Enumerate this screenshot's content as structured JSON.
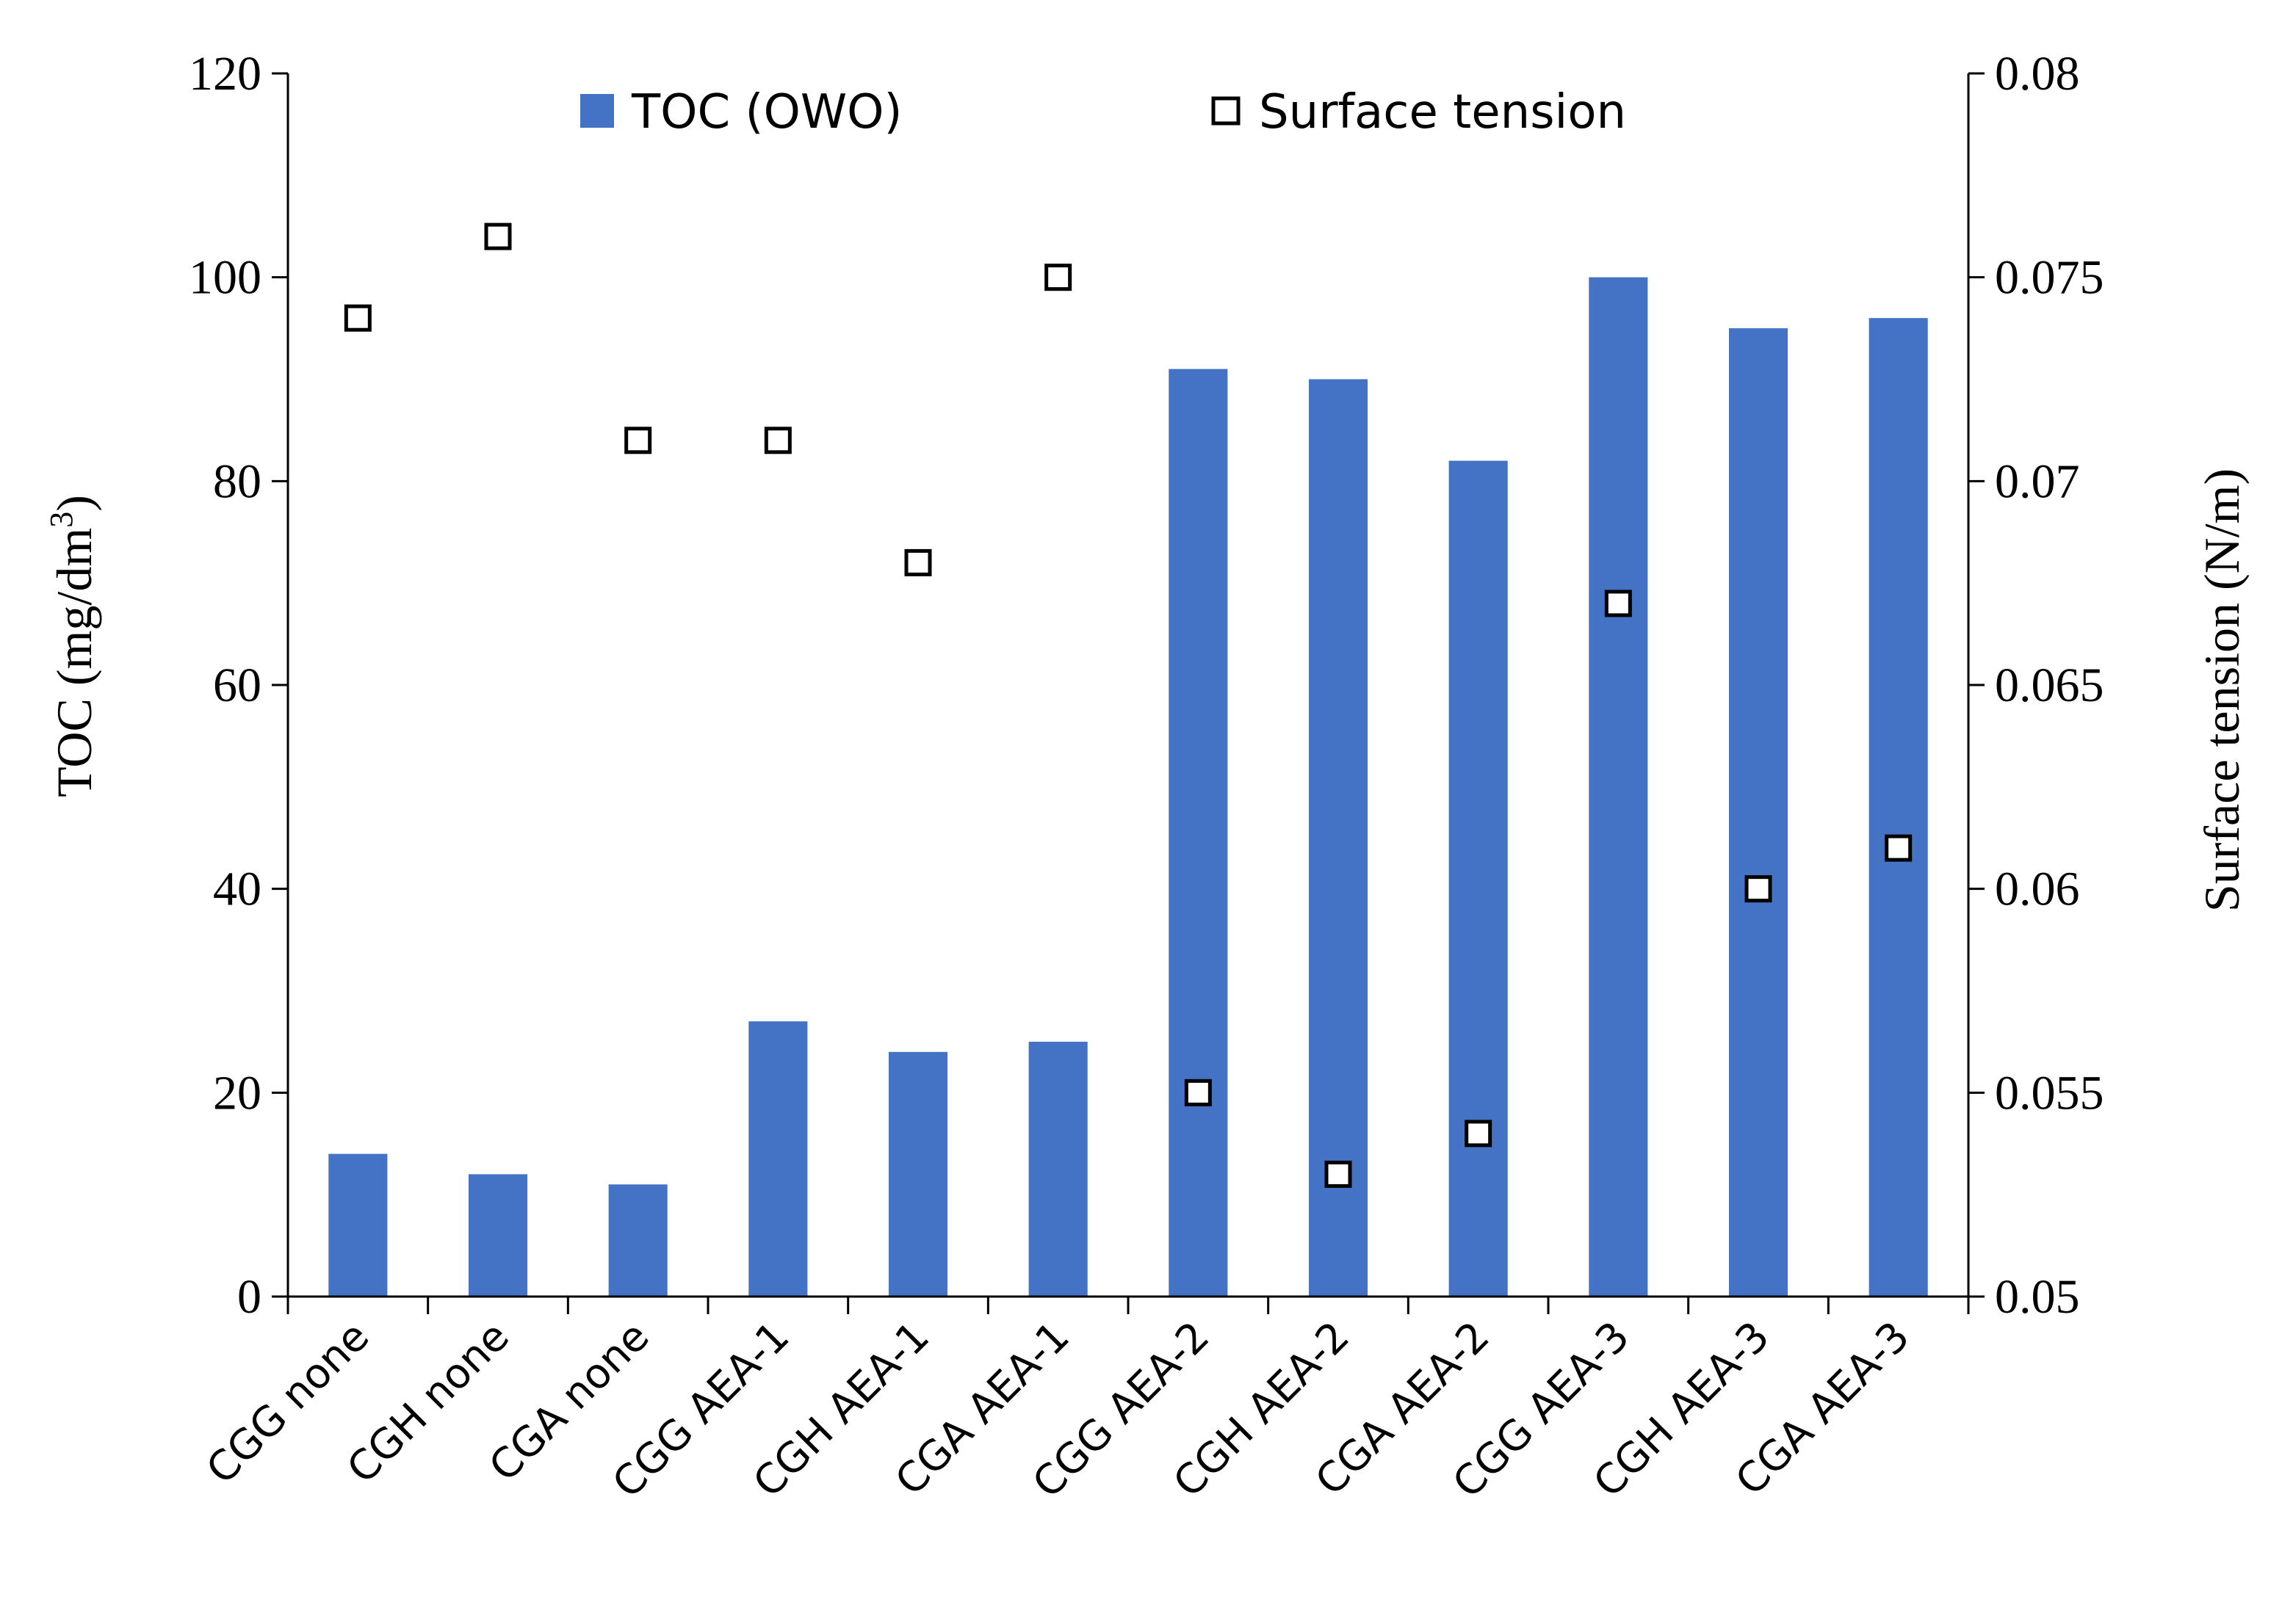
{
  "chart_data": {
    "type": "bar",
    "categories": [
      "CGG none",
      "CGH none",
      "CGA none",
      "CGG AEA-1",
      "CGH AEA-1",
      "CGA AEA-1",
      "CGG AEA-2",
      "CGH AEA-2",
      "CGA AEA-2",
      "CGG AEA-3",
      "CGH AEA-3",
      "CGA AEA-3"
    ],
    "series": [
      {
        "name": "TOC (OWO)",
        "type": "bar",
        "axis": "left",
        "color": "#4472C4",
        "values": [
          14,
          12,
          11,
          27,
          24,
          25,
          91,
          90,
          82,
          100,
          95,
          96
        ]
      },
      {
        "name": "Surface tension",
        "type": "scatter",
        "axis": "right",
        "marker": "hollow-square",
        "values": [
          0.074,
          0.076,
          0.071,
          0.071,
          0.068,
          0.075,
          0.055,
          0.053,
          0.054,
          0.067,
          0.06,
          0.061
        ]
      }
    ],
    "y_left": {
      "label": "TOC (mg/dm",
      "label_sup": "3",
      "label_end": ")",
      "range": [
        0,
        120
      ],
      "ticks": [
        "0",
        "20",
        "40",
        "60",
        "80",
        "100",
        "120"
      ]
    },
    "y_right": {
      "label": "Surface tension (N/m)",
      "range": [
        0.05,
        0.08
      ],
      "ticks": [
        "0.05",
        "0.055",
        "0.06",
        "0.065",
        "0.07",
        "0.075",
        "0.08"
      ]
    },
    "grid": false,
    "legend_position": "top"
  }
}
